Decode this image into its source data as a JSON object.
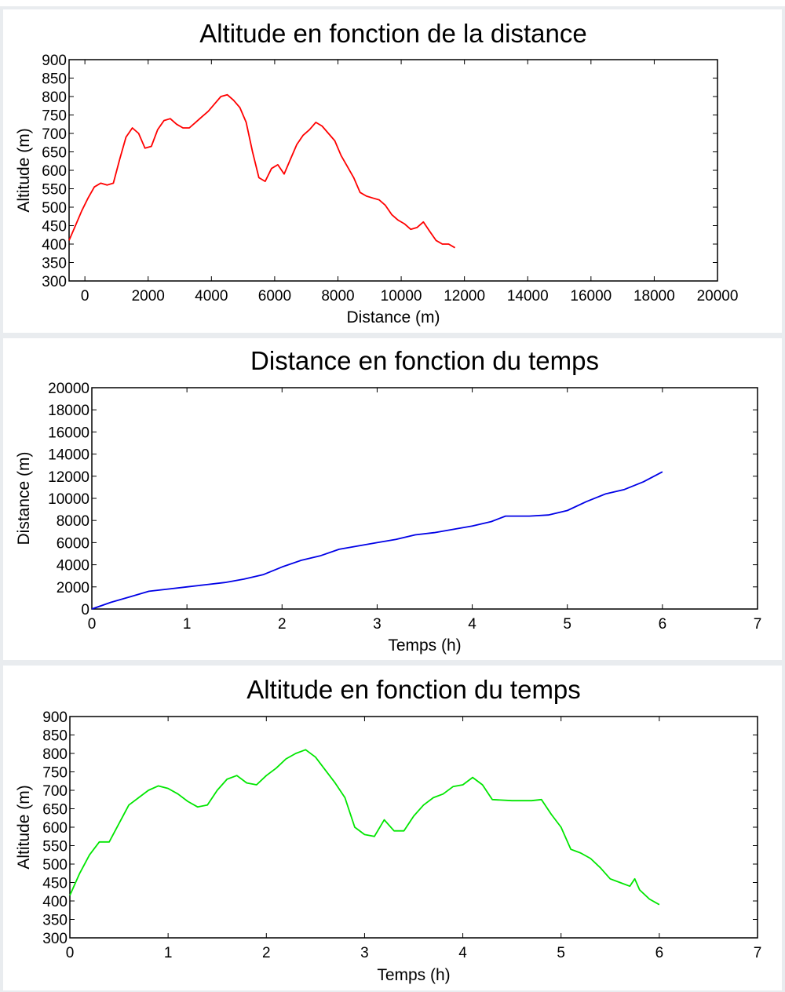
{
  "chart_data": [
    {
      "type": "line",
      "title": "Altitude en fonction de la distance",
      "xlabel": "Distance (m)",
      "ylabel": "Altitude (m)",
      "xlim": [
        -500,
        20000
      ],
      "ylim": [
        300,
        900
      ],
      "xticks": [
        0,
        2000,
        4000,
        6000,
        8000,
        10000,
        12000,
        14000,
        16000,
        18000,
        20000
      ],
      "yticks": [
        300,
        350,
        400,
        450,
        500,
        550,
        600,
        650,
        700,
        750,
        800,
        850,
        900
      ],
      "grid": false,
      "colors": {
        "line": "#ff0000"
      },
      "series": [
        {
          "x": [
            -500,
            -300,
            -100,
            100,
            300,
            500,
            700,
            900,
            1100,
            1300,
            1500,
            1700,
            1900,
            2100,
            2300,
            2500,
            2700,
            2900,
            3100,
            3300,
            3500,
            3700,
            3900,
            4100,
            4300,
            4500,
            4700,
            4900,
            5100,
            5300,
            5500,
            5700,
            5900,
            6100,
            6300,
            6500,
            6700,
            6900,
            7100,
            7300,
            7500,
            7700,
            7900,
            8100,
            8300,
            8500,
            8700,
            8900,
            9100,
            9300,
            9500,
            9700,
            9900,
            10100,
            10300,
            10500,
            10700,
            10900,
            11100,
            11300,
            11500,
            11700
          ],
          "y": [
            410,
            450,
            490,
            525,
            555,
            565,
            560,
            565,
            630,
            690,
            715,
            700,
            660,
            665,
            710,
            735,
            740,
            725,
            715,
            715,
            730,
            745,
            760,
            780,
            800,
            805,
            790,
            770,
            730,
            650,
            580,
            570,
            605,
            615,
            590,
            630,
            670,
            695,
            710,
            730,
            720,
            700,
            680,
            640,
            610,
            580,
            540,
            530,
            525,
            520,
            505,
            480,
            465,
            455,
            440,
            445,
            460,
            435,
            410,
            400,
            400,
            390
          ]
        }
      ]
    },
    {
      "type": "line",
      "title": "Distance en fonction du temps",
      "xlabel": "Temps (h)",
      "ylabel": "Distance (m)",
      "xlim": [
        0,
        7
      ],
      "ylim": [
        0,
        20000
      ],
      "xticks": [
        0,
        1,
        2,
        3,
        4,
        5,
        6,
        7
      ],
      "yticks": [
        0,
        2000,
        4000,
        6000,
        8000,
        10000,
        12000,
        14000,
        16000,
        18000,
        20000
      ],
      "grid": false,
      "colors": {
        "line": "#0000e6"
      },
      "series": [
        {
          "x": [
            0,
            0.2,
            0.4,
            0.6,
            0.8,
            1.0,
            1.2,
            1.4,
            1.6,
            1.8,
            2.0,
            2.2,
            2.4,
            2.6,
            2.8,
            3.0,
            3.2,
            3.4,
            3.6,
            3.8,
            4.0,
            4.2,
            4.35,
            4.6,
            4.8,
            5.0,
            5.2,
            5.4,
            5.6,
            5.8,
            6.0
          ],
          "y": [
            0,
            600,
            1100,
            1600,
            1800,
            2000,
            2200,
            2400,
            2700,
            3100,
            3800,
            4400,
            4800,
            5400,
            5700,
            6000,
            6300,
            6700,
            6900,
            7200,
            7500,
            7900,
            8400,
            8400,
            8500,
            8900,
            9700,
            10400,
            10800,
            11500,
            12400
          ]
        }
      ]
    },
    {
      "type": "line",
      "title": "Altitude en fonction du temps",
      "xlabel": "Temps (h)",
      "ylabel": "Altitude (m)",
      "xlim": [
        0,
        7
      ],
      "ylim": [
        300,
        900
      ],
      "xticks": [
        0,
        1,
        2,
        3,
        4,
        5,
        6,
        7
      ],
      "yticks": [
        300,
        350,
        400,
        450,
        500,
        550,
        600,
        650,
        700,
        750,
        800,
        850,
        900
      ],
      "grid": false,
      "colors": {
        "line": "#00e600"
      },
      "series": [
        {
          "x": [
            0,
            0.1,
            0.2,
            0.3,
            0.4,
            0.5,
            0.6,
            0.7,
            0.8,
            0.9,
            1.0,
            1.1,
            1.2,
            1.3,
            1.4,
            1.5,
            1.6,
            1.7,
            1.8,
            1.9,
            2.0,
            2.1,
            2.2,
            2.3,
            2.4,
            2.5,
            2.6,
            2.7,
            2.8,
            2.9,
            3.0,
            3.1,
            3.2,
            3.3,
            3.4,
            3.5,
            3.6,
            3.7,
            3.8,
            3.9,
            4.0,
            4.1,
            4.2,
            4.3,
            4.5,
            4.7,
            4.8,
            4.9,
            5.0,
            5.1,
            5.2,
            5.3,
            5.4,
            5.5,
            5.6,
            5.7,
            5.75,
            5.8,
            5.9,
            6.0
          ],
          "y": [
            415,
            475,
            525,
            560,
            560,
            610,
            660,
            680,
            700,
            712,
            705,
            690,
            670,
            655,
            660,
            700,
            730,
            740,
            720,
            715,
            740,
            760,
            785,
            800,
            810,
            790,
            755,
            720,
            680,
            600,
            580,
            575,
            620,
            590,
            590,
            630,
            660,
            680,
            690,
            710,
            715,
            735,
            715,
            675,
            672,
            672,
            675,
            635,
            600,
            540,
            530,
            515,
            490,
            460,
            450,
            440,
            460,
            430,
            405,
            390
          ]
        }
      ]
    }
  ]
}
